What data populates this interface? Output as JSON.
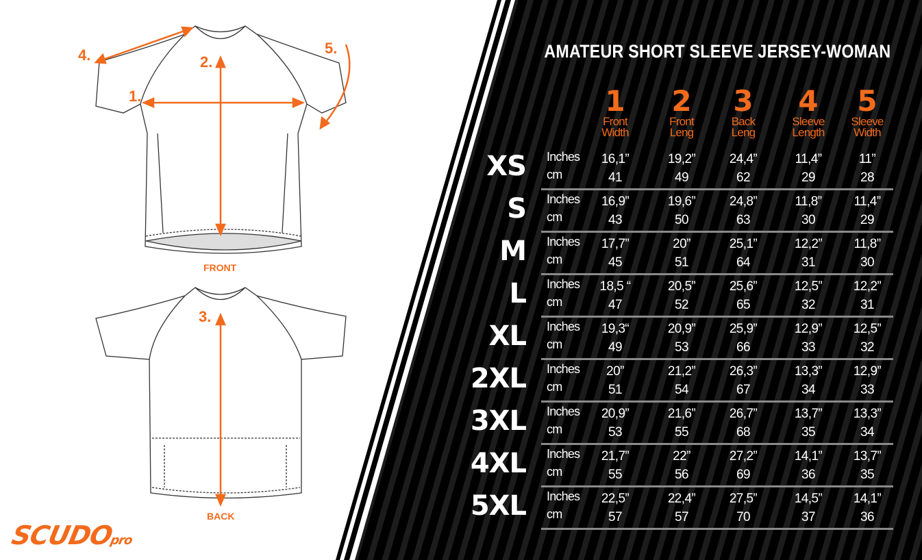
{
  "title": "AMATEUR SHORT SLEEVE JERSEY-WOMAN",
  "colors": {
    "accent": "#f26b1d",
    "panel": "#000000",
    "text": "#ffffff"
  },
  "diagram": {
    "front_label": "FRONT",
    "back_label": "BACK",
    "markers": [
      "1.",
      "2.",
      "3.",
      "4.",
      "5."
    ]
  },
  "logo": {
    "main": "SCUDO",
    "suffix": "pro"
  },
  "columns": [
    {
      "num": "1",
      "label1": "Front",
      "label2": "Width"
    },
    {
      "num": "2",
      "label1": "Front",
      "label2": "Leng"
    },
    {
      "num": "3",
      "label1": "Back",
      "label2": "Leng"
    },
    {
      "num": "4",
      "label1": "Sleeve",
      "label2": "Length"
    },
    {
      "num": "5",
      "label1": "Sleeve",
      "label2": "Width"
    }
  ],
  "unit_inches": "Inches",
  "unit_cm": "cm",
  "rows": [
    {
      "size": "XS",
      "inches": [
        "16,1”",
        "19,2”",
        "24,4”",
        "11,4”",
        "11”"
      ],
      "cm": [
        "41",
        "49",
        "62",
        "29",
        "28"
      ]
    },
    {
      "size": "S",
      "inches": [
        "16,9”",
        "19,6”",
        "24,8”",
        "11,8”",
        "11,4”"
      ],
      "cm": [
        "43",
        "50",
        "63",
        "30",
        "29"
      ]
    },
    {
      "size": "M",
      "inches": [
        "17,7”",
        "20”",
        "25,1”",
        "12,2”",
        "11,8”"
      ],
      "cm": [
        "45",
        "51",
        "64",
        "31",
        "30"
      ]
    },
    {
      "size": "L",
      "inches": [
        "18,5 “",
        "20,5”",
        "25,6”",
        "12,5”",
        "12,2”"
      ],
      "cm": [
        "47",
        "52",
        "65",
        "32",
        "31"
      ]
    },
    {
      "size": "XL",
      "inches": [
        "19,3“",
        "20,9”",
        "25,9”",
        "12,9”",
        "12,5”"
      ],
      "cm": [
        "49",
        "53",
        "66",
        "33",
        "32"
      ]
    },
    {
      "size": "2XL",
      "inches": [
        "20”",
        "21,2”",
        "26,3”",
        "13,3”",
        "12,9”"
      ],
      "cm": [
        "51",
        "54",
        "67",
        "34",
        "33"
      ]
    },
    {
      "size": "3XL",
      "inches": [
        "20,9”",
        "21,6”",
        "26,7”",
        "13,7”",
        "13,3”"
      ],
      "cm": [
        "53",
        "55",
        "68",
        "35",
        "34"
      ]
    },
    {
      "size": "4XL",
      "inches": [
        "21,7”",
        "22”",
        "27,2”",
        "14,1”",
        "13,7”"
      ],
      "cm": [
        "55",
        "56",
        "69",
        "36",
        "35"
      ]
    },
    {
      "size": "5XL",
      "inches": [
        "22,5”",
        "22,4”",
        "27,5”",
        "14,5”",
        "14,1”"
      ],
      "cm": [
        "57",
        "57",
        "70",
        "37",
        "36"
      ]
    }
  ]
}
